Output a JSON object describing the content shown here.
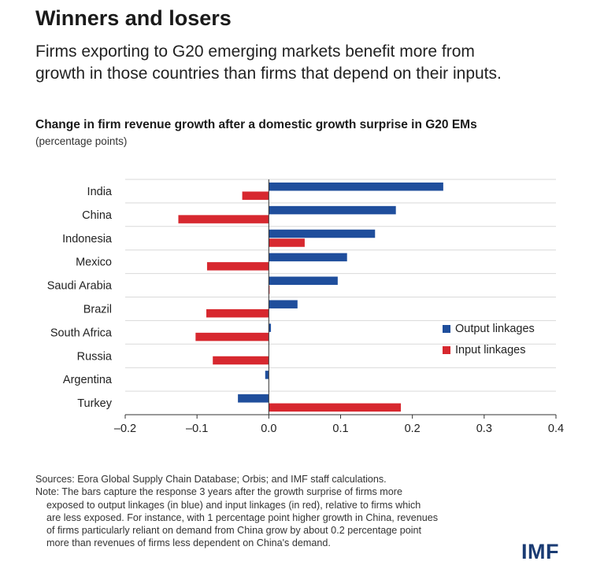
{
  "header": {
    "title": "Winners and losers",
    "subtitle_line1": "Firms exporting to G20 emerging markets benefit more from",
    "subtitle_line2": "growth in those countries than firms that depend on their inputs."
  },
  "chart_data": {
    "type": "bar",
    "orientation": "horizontal",
    "title": "Change in firm revenue growth after a domestic growth surprise in G20 EMs",
    "subtitle": "(percentage points)",
    "categories": [
      "India",
      "China",
      "Indonesia",
      "Mexico",
      "Saudi Arabia",
      "Brazil",
      "South Africa",
      "Russia",
      "Argentina",
      "Turkey"
    ],
    "series": [
      {
        "name": "Output linkages",
        "color": "#1f4e9c",
        "values": [
          0.243,
          0.177,
          0.148,
          0.109,
          0.096,
          0.04,
          0.003,
          0.0,
          -0.005,
          -0.043
        ]
      },
      {
        "name": "Input linkages",
        "color": "#d7282f",
        "values": [
          -0.037,
          -0.126,
          0.05,
          -0.086,
          0.001,
          -0.087,
          -0.102,
          -0.078,
          0.0,
          0.184
        ]
      }
    ],
    "xlim": [
      -0.2,
      0.4
    ],
    "xticks": [
      "–0.2",
      "–0.1",
      "0.0",
      "0.1",
      "0.2",
      "0.3",
      "0.4"
    ],
    "grid": true,
    "legend_position": "right"
  },
  "notes": {
    "sources": "Sources: Eora Global Supply Chain Database; Orbis; and IMF staff calculations.",
    "note_lines": [
      "Note: The bars capture the response 3 years after the growth surprise of firms more",
      "exposed to output linkages (in blue) and input linkages (in red), relative to firms which",
      "are less exposed. For instance, with 1 percentage point higher growth in China, revenues",
      "of firms particularly reliant on demand from China grow by about 0.2 percentage point",
      "more than revenues of firms less dependent on China's demand."
    ]
  },
  "logo": {
    "text": "IMF",
    "color": "#1a3b73"
  }
}
